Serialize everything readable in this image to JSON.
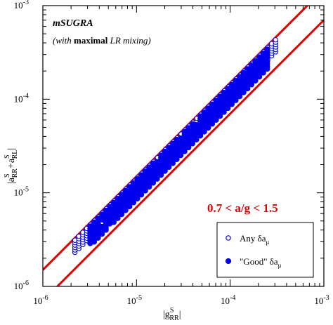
{
  "chart_data": {
    "type": "scatter",
    "xscale": "log",
    "yscale": "log",
    "xlim": [
      1e-06,
      0.001
    ],
    "ylim": [
      1e-06,
      0.001
    ],
    "xticks": [
      {
        "value": 1e-06,
        "base": "10",
        "exp": "-6"
      },
      {
        "value": 1e-05,
        "base": "10",
        "exp": "-5"
      },
      {
        "value": 0.0001,
        "base": "10",
        "exp": "-4"
      },
      {
        "value": 0.001,
        "base": "10",
        "exp": "-3"
      }
    ],
    "yticks": [
      {
        "value": 1e-06,
        "base": "10",
        "exp": "-6"
      },
      {
        "value": 1e-05,
        "base": "10",
        "exp": "-5"
      },
      {
        "value": 0.0001,
        "base": "10",
        "exp": "-4"
      },
      {
        "value": 0.001,
        "base": "10",
        "exp": "-3"
      }
    ],
    "xlabel": {
      "pre": "|g",
      "sup": "S",
      "sub": "RR",
      "post": "|"
    },
    "ylabel": {
      "pre": "|a",
      "sup1": "S",
      "sub1": "RR",
      "mid": "+a",
      "sup2": "S",
      "sub2": "RL",
      "post": "|"
    },
    "annotations": {
      "title": "mSUGRA",
      "subtitle_parts": [
        {
          "text": "(with ",
          "style": "italic"
        },
        {
          "text": "maximal",
          "style": "bold"
        },
        {
          "text": " LR",
          "style": "italic"
        },
        {
          "text": " mixing)",
          "style": "italic"
        }
      ],
      "ratio_text": "0.7 < a/g < 1.5"
    },
    "ratio_bounds": [
      0.7,
      1.5
    ],
    "boundary_color": "#e00000",
    "point_color": "#0000ee",
    "series": [
      {
        "name": "Any δa_μ",
        "legend_text": "Any δa",
        "legend_sub": "μ",
        "marker": "open-circle",
        "band": {
          "x_range": [
            2.2e-06,
            0.00033
          ],
          "ratio_range": [
            1.05,
            1.42
          ]
        }
      },
      {
        "name": "\"Good\" δa_μ",
        "legend_text": "\"Good\" δa",
        "legend_sub": "μ",
        "marker": "filled-circle",
        "band": {
          "x_range": [
            3.2e-06,
            0.00026
          ],
          "ratio_range": [
            0.85,
            1.38
          ]
        }
      }
    ],
    "legend_position": "lower-right",
    "grid": false
  }
}
